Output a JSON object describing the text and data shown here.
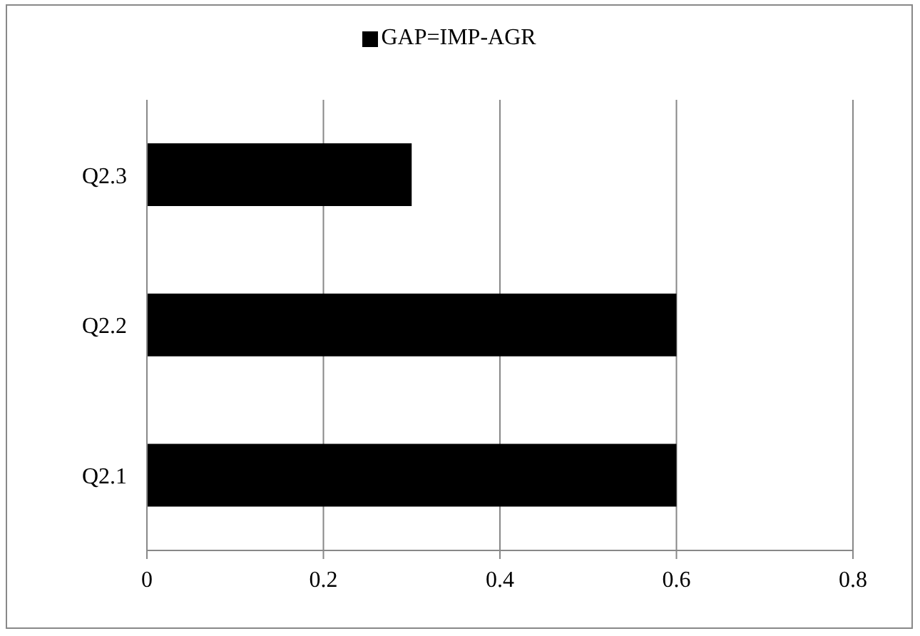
{
  "chart_data": {
    "type": "bar",
    "orientation": "horizontal",
    "categories": [
      "Q2.3",
      "Q2.2",
      "Q2.1"
    ],
    "series": [
      {
        "name": "GAP=IMP-AGR",
        "color": "#000000",
        "values": [
          0.3,
          0.6,
          0.6
        ]
      }
    ],
    "xlim": [
      0,
      0.8
    ],
    "xticks": [
      0,
      0.2,
      0.4,
      0.6,
      0.8
    ],
    "grid": "x",
    "legend": "top"
  }
}
